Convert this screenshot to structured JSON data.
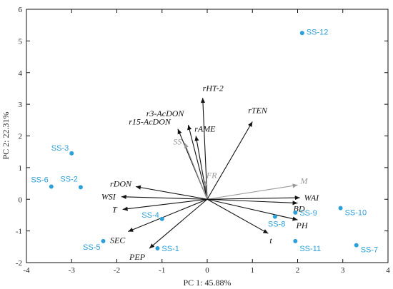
{
  "chart_data": {
    "type": "scatter",
    "subtype": "pca-biplot",
    "title": "",
    "xlabel": "PC 1: 45.88%",
    "ylabel": "PC 2: 22.31%",
    "xlim": [
      -4,
      4
    ],
    "ylim": [
      -2,
      6
    ],
    "xticks": [
      -4,
      -3,
      -2,
      -1,
      0,
      1,
      2,
      3,
      4
    ],
    "yticks": [
      -2,
      -1,
      0,
      1,
      2,
      3,
      4,
      5,
      6
    ],
    "grid": false,
    "colors": {
      "points": "#2b9fd8",
      "vectors_active": "#111111",
      "vectors_supplementary": "#999999"
    },
    "points": [
      {
        "label": "SS-1",
        "x": -1.1,
        "y": -1.55
      },
      {
        "label": "SS-2",
        "x": -2.8,
        "y": 0.38
      },
      {
        "label": "SS-3",
        "x": -3.0,
        "y": 1.45
      },
      {
        "label": "SS-4",
        "x": -1.0,
        "y": -0.62
      },
      {
        "label": "SS-5",
        "x": -2.3,
        "y": -1.32
      },
      {
        "label": "SS-6",
        "x": -3.45,
        "y": 0.4
      },
      {
        "label": "SS-7",
        "x": 3.3,
        "y": -1.45
      },
      {
        "label": "SS-8",
        "x": 1.5,
        "y": -0.55
      },
      {
        "label": "SS-9",
        "x": 1.95,
        "y": -0.42
      },
      {
        "label": "SS-10",
        "x": 2.95,
        "y": -0.28
      },
      {
        "label": "SS-11",
        "x": 1.95,
        "y": -1.32
      },
      {
        "label": "SS-12",
        "x": 2.1,
        "y": 5.25
      }
    ],
    "vectors": [
      {
        "label": "r3-AcDON",
        "x": -0.42,
        "y": 2.35,
        "supplementary": false
      },
      {
        "label": "rHT-2",
        "x": -0.1,
        "y": 3.2,
        "supplementary": false
      },
      {
        "label": "r15-AcDON",
        "x": -0.65,
        "y": 2.22,
        "supplementary": false
      },
      {
        "label": "rAME",
        "x": -0.25,
        "y": 2.0,
        "supplementary": false
      },
      {
        "label": "rTEN",
        "x": 1.0,
        "y": 2.45,
        "supplementary": false
      },
      {
        "label": "SS",
        "x": -0.5,
        "y": 1.78,
        "supplementary": true
      },
      {
        "label": "FR",
        "x": -0.05,
        "y": 0.58,
        "supplementary": true
      },
      {
        "label": "M",
        "x": 2.0,
        "y": 0.45,
        "supplementary": true
      },
      {
        "label": "rDON",
        "x": -1.58,
        "y": 0.4,
        "supplementary": false
      },
      {
        "label": "WSI",
        "x": -1.9,
        "y": 0.08,
        "supplementary": false
      },
      {
        "label": "T",
        "x": -1.87,
        "y": -0.32,
        "supplementary": false
      },
      {
        "label": "SEC",
        "x": -1.75,
        "y": -1.02,
        "supplementary": false
      },
      {
        "label": "PEP",
        "x": -1.28,
        "y": -1.55,
        "supplementary": false
      },
      {
        "label": "WAI",
        "x": 2.05,
        "y": 0.05,
        "supplementary": false
      },
      {
        "label": "BD",
        "x": 2.0,
        "y": -0.12,
        "supplementary": false
      },
      {
        "label": "PH",
        "x": 2.0,
        "y": -0.65,
        "supplementary": false
      },
      {
        "label": "t",
        "x": 1.35,
        "y": -1.08,
        "supplementary": false
      }
    ]
  }
}
